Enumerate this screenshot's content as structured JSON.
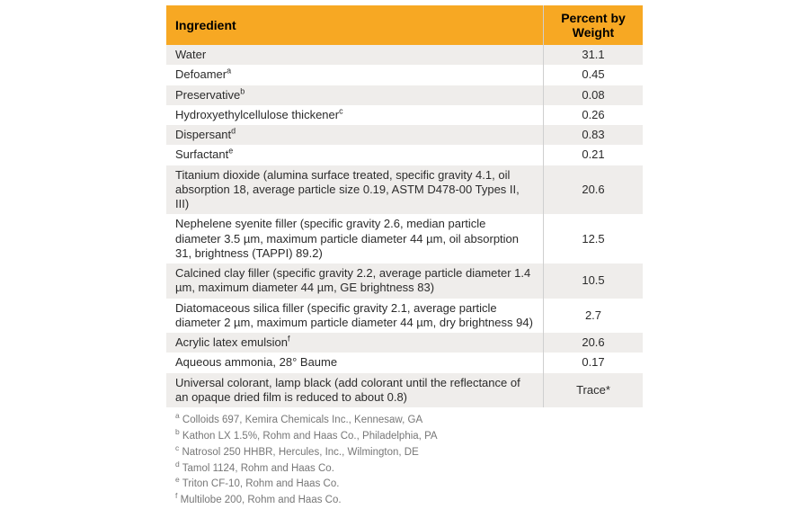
{
  "table": {
    "columns": [
      {
        "label": "Ingredient",
        "align": "left"
      },
      {
        "label": "Percent by\nWeight",
        "align": "center"
      }
    ],
    "header_bg": "#f7a823",
    "header_text_color": "#000000",
    "row_alt_bg": "#efedeb",
    "row_bg": "#ffffff",
    "border_color": "#cfcfcf",
    "rows": [
      {
        "ingredient": "Water",
        "sup": "",
        "value": "31.1"
      },
      {
        "ingredient": "Defoamer",
        "sup": "a",
        "value": "0.45"
      },
      {
        "ingredient": "Preservative",
        "sup": "b",
        "value": "0.08"
      },
      {
        "ingredient": "Hydroxyethylcellulose thickener",
        "sup": "c",
        "value": "0.26"
      },
      {
        "ingredient": "Dispersant",
        "sup": "d",
        "value": "0.83"
      },
      {
        "ingredient": "Surfactant",
        "sup": "e",
        "value": "0.21"
      },
      {
        "ingredient": "Titanium dioxide (alumina surface treated, specific gravity 4.1, oil absorption 18, average particle size 0.19, ASTM D478-00 Types II, III)",
        "sup": "",
        "value": "20.6"
      },
      {
        "ingredient": "Nephelene  syenite filler (specific gravity 2.6, median particle diameter 3.5 µm, maximum particle diameter 44 µm, oil absorption 31, brightness (TAPPI) 89.2)",
        "sup": "",
        "value": "12.5"
      },
      {
        "ingredient": "Calcined clay filler (specific gravity 2.2, average particle diameter 1.4 µm, maximum diameter 44 µm, GE brightness 83)",
        "sup": "",
        "value": "10.5"
      },
      {
        "ingredient": "Diatomaceous silica filler (specific gravity 2.1, average particle diameter 2 µm, maximum particle diameter 44 µm, dry brightness 94)",
        "sup": "",
        "value": "2.7"
      },
      {
        "ingredient": "Acrylic latex emulsion",
        "sup": "f",
        "value": "20.6"
      },
      {
        "ingredient": "Aqueous ammonia, 28° Baume",
        "sup": "",
        "value": "0.17"
      },
      {
        "ingredient": "Universal colorant, lamp black (add colorant until the reflectance of an opaque dried film is reduced to about 0.8)",
        "sup": "",
        "value": "Trace*"
      }
    ],
    "footnotes": [
      {
        "sup": "a",
        "text": "Colloids 697, Kemira Chemicals Inc., Kennesaw, GA"
      },
      {
        "sup": "b",
        "text": "Kathon LX 1.5%, Rohm and Haas Co., Philadelphia, PA"
      },
      {
        "sup": "c",
        "text": "Natrosol 250 HHBR, Hercules, Inc., Wilmington, DE"
      },
      {
        "sup": "d",
        "text": "Tamol 1124, Rohm and Haas Co."
      },
      {
        "sup": "e",
        "text": "Triton CF-10, Rohm and Haas Co."
      },
      {
        "sup": "f",
        "text": "Multilobe 200, Rohm and Haas Co."
      }
    ]
  }
}
